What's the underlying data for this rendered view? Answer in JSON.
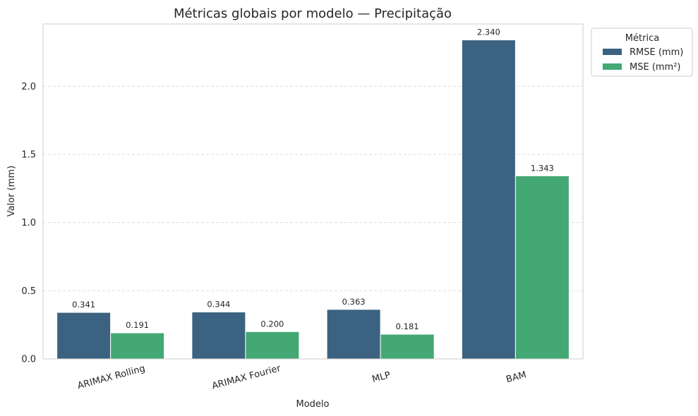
{
  "chart_data": {
    "type": "bar",
    "title": "Métricas globais por modelo — Precipitação",
    "xlabel": "Modelo",
    "ylabel": "Valor (mm)",
    "categories": [
      "ARIMAX Rolling",
      "ARIMAX Fourier",
      "MLP",
      "BAM"
    ],
    "series": [
      {
        "name": "RMSE (mm)",
        "values": [
          0.341,
          0.344,
          0.363,
          2.34
        ],
        "labels": [
          "0.341",
          "0.344",
          "0.363",
          "2.340"
        ],
        "color": "#3b6381"
      },
      {
        "name": "MSE (mm²)",
        "values": [
          0.191,
          0.2,
          0.181,
          1.343
        ],
        "labels": [
          "0.191",
          "0.200",
          "0.181",
          "1.343"
        ],
        "color": "#43a874"
      }
    ],
    "yticks": [
      0.0,
      0.5,
      1.0,
      1.5,
      2.0
    ],
    "ytick_labels": [
      "0.0",
      "0.5",
      "1.0",
      "1.5",
      "2.0"
    ],
    "ylim": [
      0,
      2.457
    ],
    "grid": "y-dashed",
    "legend": {
      "title": "Métrica",
      "placement": "outside-top-right"
    }
  }
}
